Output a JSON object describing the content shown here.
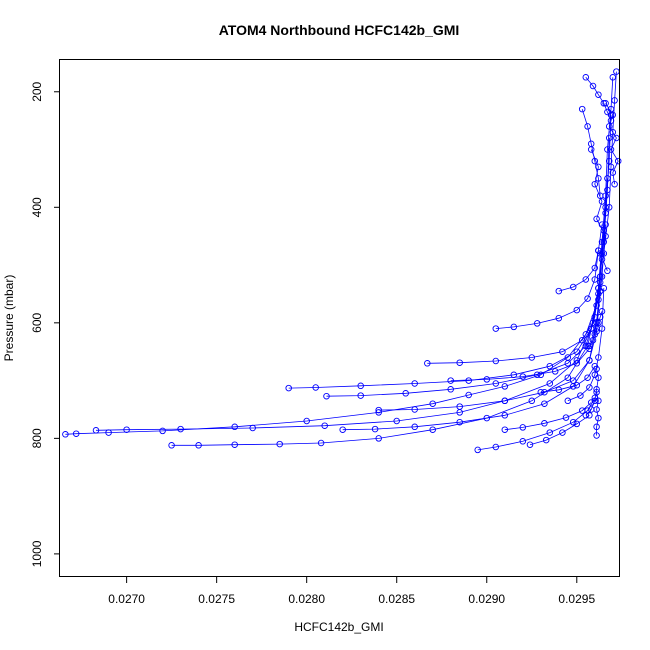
{
  "chart_data": {
    "type": "scatter",
    "title": "ATOM4 Northbound HCFC142b_GMI",
    "xlabel": "HCFC142b_GMI",
    "ylabel": "Pressure (mbar)",
    "xlim": [
      0.02663,
      0.02974
    ],
    "ylim": [
      1040,
      145
    ],
    "y_reversed": true,
    "x_ticks": [
      0.027,
      0.0275,
      0.028,
      0.0285,
      0.029,
      0.0295
    ],
    "x_tick_labels": [
      "0.0270",
      "0.0275",
      "0.0280",
      "0.0285",
      "0.0290",
      "0.0295"
    ],
    "y_ticks": [
      200,
      400,
      600,
      800,
      1000
    ],
    "y_tick_labels": [
      "200",
      "400",
      "600",
      "800",
      "1000"
    ],
    "marker": "open-circle",
    "line": true,
    "color": "#0000ff",
    "series": [
      {
        "x": [
          0.02666,
          0.02672,
          0.0269,
          0.0272,
          0.0276,
          0.028,
          0.0284,
          0.0287,
          0.0289,
          0.0291,
          0.0293,
          0.02945,
          0.02955,
          0.02962,
          0.02965,
          0.02968,
          0.02969,
          0.0297,
          0.02971,
          0.02972
        ],
        "y": [
          793,
          792,
          790,
          787,
          780,
          770,
          755,
          740,
          725,
          710,
          690,
          660,
          620,
          560,
          480,
          400,
          330,
          270,
          215,
          165
        ]
      },
      {
        "x": [
          0.02683,
          0.027,
          0.0273,
          0.0277,
          0.0281,
          0.0285,
          0.02885,
          0.0291,
          0.02935,
          0.0295,
          0.02958,
          0.02962,
          0.02964,
          0.02966,
          0.02967,
          0.02969,
          0.0297
        ],
        "y": [
          786,
          785,
          784,
          782,
          778,
          770,
          755,
          735,
          705,
          665,
          610,
          540,
          460,
          380,
          300,
          230,
          175
        ]
      },
      {
        "x": [
          0.02725,
          0.0274,
          0.0276,
          0.02785,
          0.02808,
          0.0284,
          0.0287,
          0.029,
          0.02925,
          0.02945,
          0.02956,
          0.02961,
          0.02964,
          0.02966,
          0.02968,
          0.02969
        ],
        "y": [
          812,
          812,
          811,
          810,
          808,
          800,
          785,
          765,
          735,
          695,
          640,
          570,
          490,
          410,
          320,
          240
        ]
      },
      {
        "x": [
          0.0279,
          0.02805,
          0.0283,
          0.0286,
          0.0289,
          0.02915,
          0.02935,
          0.0295,
          0.02958,
          0.02962,
          0.02965,
          0.02967,
          0.02968
        ],
        "y": [
          713,
          712,
          709,
          705,
          700,
          690,
          675,
          650,
          610,
          540,
          460,
          370,
          280
        ]
      },
      {
        "x": [
          0.02811,
          0.0283,
          0.02855,
          0.0288,
          0.02905,
          0.02928,
          0.02945,
          0.02955,
          0.0296,
          0.02963,
          0.02965,
          0.02967
        ],
        "y": [
          727,
          726,
          722,
          715,
          705,
          690,
          670,
          640,
          590,
          520,
          440,
          350
        ]
      },
      {
        "x": [
          0.0282,
          0.02838,
          0.0286,
          0.02885,
          0.0291,
          0.02932,
          0.02948,
          0.02957,
          0.02961,
          0.02964,
          0.02966
        ],
        "y": [
          785,
          784,
          780,
          772,
          760,
          740,
          710,
          665,
          600,
          520,
          430
        ]
      },
      {
        "x": [
          0.0284,
          0.0286,
          0.02885,
          0.0291,
          0.02932,
          0.02948,
          0.02957,
          0.02961,
          0.02963
        ],
        "y": [
          751,
          750,
          745,
          735,
          720,
          700,
          665,
          615,
          545
        ]
      },
      {
        "x": [
          0.02867,
          0.02885,
          0.02905,
          0.02925,
          0.02942,
          0.02953,
          0.02959,
          0.02962,
          0.02964,
          0.02966
        ],
        "y": [
          670,
          669,
          666,
          660,
          650,
          630,
          600,
          550,
          480,
          400
        ]
      },
      {
        "x": [
          0.0288,
          0.029,
          0.0292,
          0.02938,
          0.0295,
          0.02957,
          0.02961,
          0.02963
        ],
        "y": [
          700,
          698,
          693,
          684,
          670,
          645,
          600,
          530
        ]
      },
      {
        "x": [
          0.02895,
          0.02905,
          0.0292,
          0.02935,
          0.02948,
          0.02956,
          0.0296
        ],
        "y": [
          820,
          815,
          805,
          790,
          772,
          752,
          730
        ]
      },
      {
        "x": [
          0.0291,
          0.0292,
          0.02932,
          0.02944,
          0.02953,
          0.02958
        ],
        "y": [
          785,
          781,
          774,
          764,
          752,
          738
        ]
      },
      {
        "x": [
          0.02924,
          0.02933,
          0.02942,
          0.0295,
          0.02957
        ],
        "y": [
          811,
          803,
          790,
          775,
          760
        ]
      },
      {
        "x": [
          0.02905,
          0.02915,
          0.02928,
          0.0294,
          0.0295,
          0.02956,
          0.0296,
          0.02962
        ],
        "y": [
          610,
          607,
          601,
          592,
          578,
          558,
          525,
          475
        ]
      },
      {
        "x": [
          0.02945,
          0.02952,
          0.02957,
          0.0296,
          0.02962,
          0.02964,
          0.02965
        ],
        "y": [
          735,
          726,
          712,
          690,
          660,
          610,
          540
        ]
      },
      {
        "x": [
          0.0293,
          0.0294,
          0.0295,
          0.02956,
          0.0296
        ],
        "y": [
          720,
          716,
          708,
          695,
          675
        ]
      },
      {
        "x": [
          0.0294,
          0.02948,
          0.02955,
          0.0296,
          0.02962,
          0.02964
        ],
        "y": [
          545,
          538,
          525,
          505,
          475,
          430
        ]
      },
      {
        "x": [
          0.02955,
          0.02958,
          0.0296,
          0.02961,
          0.02962,
          0.02961
        ],
        "y": [
          760,
          750,
          735,
          715,
          695,
          680
        ]
      },
      {
        "x": [
          0.02961,
          0.02961,
          0.02962,
          0.02961,
          0.02962,
          0.02961
        ],
        "y": [
          795,
          780,
          765,
          750,
          735,
          720
        ]
      },
      {
        "x": [
          0.02957,
          0.02959,
          0.0296,
          0.02961,
          0.02962,
          0.02963,
          0.02964
        ],
        "y": [
          640,
          630,
          620,
          610,
          600,
          590,
          580
        ]
      },
      {
        "x": [
          0.02966,
          0.0297,
          0.02968,
          0.02972,
          0.02969,
          0.02973,
          0.0297,
          0.02971
        ],
        "y": [
          220,
          240,
          260,
          280,
          300,
          320,
          340,
          360
        ]
      },
      {
        "x": [
          0.02958,
          0.02962,
          0.0296,
          0.02964,
          0.02961,
          0.02966,
          0.02963,
          0.02967
        ],
        "y": [
          300,
          330,
          360,
          390,
          420,
          450,
          480,
          510
        ]
      },
      {
        "x": [
          0.02953,
          0.02956,
          0.02958,
          0.0296,
          0.02962,
          0.02963
        ],
        "y": [
          230,
          260,
          290,
          320,
          350,
          380
        ]
      },
      {
        "x": [
          0.02955,
          0.02959,
          0.02962,
          0.02965,
          0.02967,
          0.02969
        ],
        "y": [
          175,
          190,
          205,
          220,
          235,
          250
        ]
      }
    ]
  }
}
